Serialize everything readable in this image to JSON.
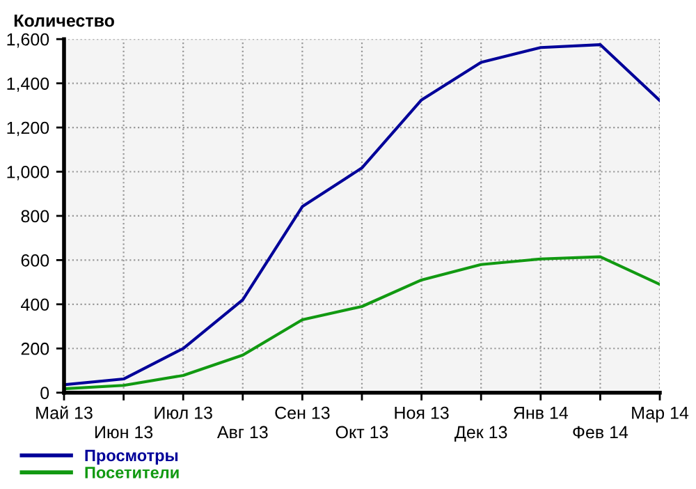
{
  "chart_data": {
    "type": "line",
    "ylabel": "Количество",
    "categories": [
      "Май 13",
      "Июн 13",
      "Июл 13",
      "Авг 13",
      "Сен 13",
      "Окт 13",
      "Ноя 13",
      "Дек 13",
      "Янв 14",
      "Фев 14",
      "Мар 14"
    ],
    "series": [
      {
        "name": "Просмотры",
        "color": "#000099",
        "values": [
          36,
          62,
          200,
          420,
          842,
          1017,
          1325,
          1495,
          1562,
          1575,
          1322
        ]
      },
      {
        "name": "Посетители",
        "color": "#119911",
        "values": [
          18,
          33,
          78,
          170,
          330,
          390,
          510,
          580,
          605,
          615,
          490
        ]
      }
    ],
    "ylim": [
      0,
      1600
    ],
    "yticks": [
      0,
      {
        "value": 200,
        "label": "200"
      },
      {
        "value": 400,
        "label": "400"
      },
      {
        "value": 600,
        "label": "600"
      },
      {
        "value": 800,
        "label": "800"
      },
      {
        "value": 1000,
        "label": "1,000"
      },
      {
        "value": 1200,
        "label": "1,200"
      },
      {
        "value": 1400,
        "label": "1,400"
      },
      {
        "value": 1600,
        "label": "1,600"
      }
    ],
    "grid": true,
    "legend": "bottom left",
    "marker": "none",
    "line_style": "solid"
  }
}
